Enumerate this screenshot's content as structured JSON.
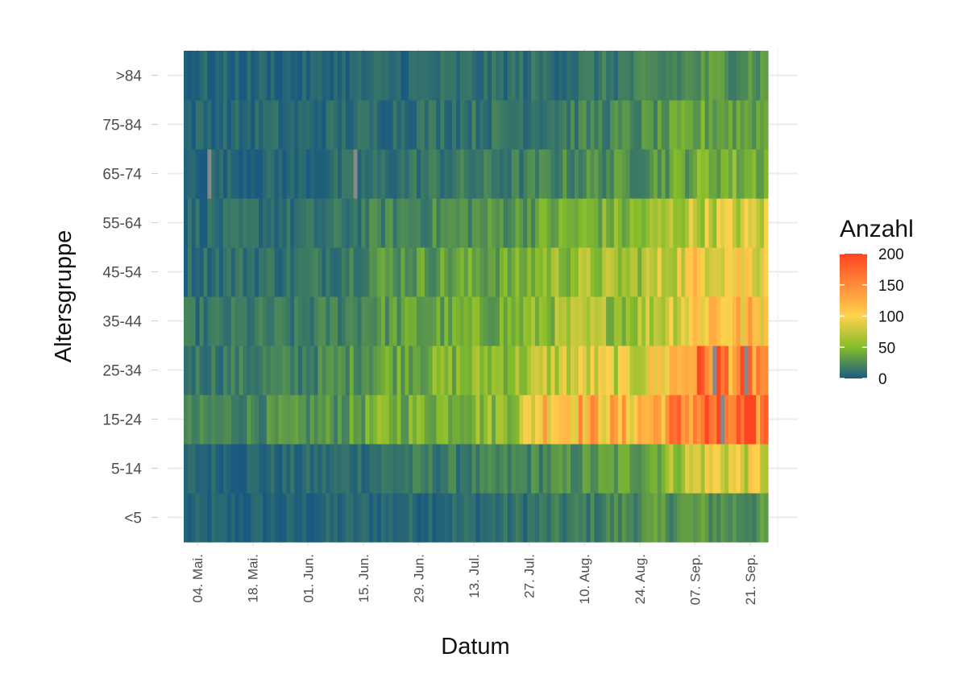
{
  "chart_data": {
    "type": "heatmap",
    "title": "",
    "xlabel": "Datum",
    "ylabel": "Altersgruppe",
    "x_range": [
      "2020-05-01",
      "2020-09-25"
    ],
    "x_ticks": [
      "04. Mai.",
      "18. Mai.",
      "01. Jun.",
      "15. Jun.",
      "29. Jun.",
      "13. Jul.",
      "27. Jul.",
      "10. Aug.",
      "24. Aug.",
      "07. Sep.",
      "21. Sep."
    ],
    "categories": [
      "<5",
      "5-14",
      "15-24",
      "25-34",
      "35-44",
      "45-54",
      "55-64",
      "65-74",
      "75-84",
      ">84"
    ],
    "value_description": "Anzahl (daily count per age group); approximate weekly levels read from color scale",
    "legend": {
      "title": "Anzahl",
      "placement": "right",
      "ticks": [
        0,
        50,
        100,
        150,
        200
      ],
      "range": [
        0,
        200
      ],
      "colors": [
        "#1a5a80",
        "#84bd2a",
        "#ffd24d",
        "#ff4422"
      ],
      "color_stops": [
        0,
        0.25,
        0.5,
        1.0
      ],
      "missing_color": "#888888"
    },
    "weekly_levels": [
      {
        "group": "<5",
        "values": [
          3,
          4,
          3,
          4,
          3,
          5,
          6,
          7,
          7,
          8,
          8,
          9,
          11,
          13,
          15,
          18,
          24,
          27,
          30,
          28,
          26
        ]
      },
      {
        "group": "5-14",
        "values": [
          5,
          6,
          6,
          6,
          6,
          8,
          10,
          12,
          15,
          16,
          16,
          17,
          20,
          23,
          26,
          30,
          35,
          45,
          70,
          90,
          85
        ]
      },
      {
        "group": "15-24",
        "values": [
          18,
          20,
          22,
          24,
          25,
          28,
          32,
          45,
          45,
          48,
          52,
          55,
          62,
          120,
          125,
          118,
          112,
          130,
          150,
          170,
          160
        ]
      },
      {
        "group": "25-34",
        "values": [
          15,
          16,
          17,
          18,
          18,
          22,
          28,
          38,
          42,
          45,
          48,
          55,
          58,
          70,
          80,
          82,
          78,
          95,
          130,
          175,
          150
        ]
      },
      {
        "group": "35-44",
        "values": [
          12,
          13,
          14,
          15,
          14,
          18,
          22,
          30,
          33,
          35,
          38,
          42,
          45,
          55,
          60,
          62,
          60,
          75,
          95,
          120,
          110
        ]
      },
      {
        "group": "45-54",
        "values": [
          10,
          11,
          12,
          12,
          12,
          15,
          20,
          30,
          32,
          34,
          36,
          38,
          40,
          55,
          58,
          60,
          58,
          70,
          90,
          110,
          100
        ]
      },
      {
        "group": "55-64",
        "values": [
          8,
          9,
          9,
          10,
          9,
          11,
          14,
          20,
          22,
          24,
          26,
          28,
          30,
          38,
          42,
          45,
          45,
          55,
          70,
          80,
          78
        ]
      },
      {
        "group": "65-74",
        "values": [
          5,
          6,
          5,
          6,
          5,
          7,
          8,
          10,
          12,
          14,
          15,
          15,
          16,
          20,
          24,
          26,
          26,
          32,
          38,
          46,
          45
        ]
      },
      {
        "group": "75-84",
        "values": [
          6,
          7,
          6,
          7,
          6,
          7,
          8,
          10,
          11,
          12,
          13,
          13,
          14,
          16,
          18,
          20,
          22,
          26,
          32,
          38,
          37
        ]
      },
      {
        "group": ">84",
        "values": [
          4,
          5,
          4,
          5,
          4,
          5,
          6,
          7,
          8,
          9,
          9,
          9,
          10,
          11,
          12,
          14,
          16,
          18,
          22,
          28,
          30
        ]
      }
    ],
    "missing_cells": [
      {
        "group": "65-74",
        "date": "2020-05-07"
      },
      {
        "group": "65-74",
        "date": "2020-06-13"
      },
      {
        "group": "25-34",
        "date": "2020-09-12"
      },
      {
        "group": "25-34",
        "date": "2020-09-20"
      },
      {
        "group": "15-24",
        "date": "2020-09-14"
      }
    ],
    "grid": true
  }
}
